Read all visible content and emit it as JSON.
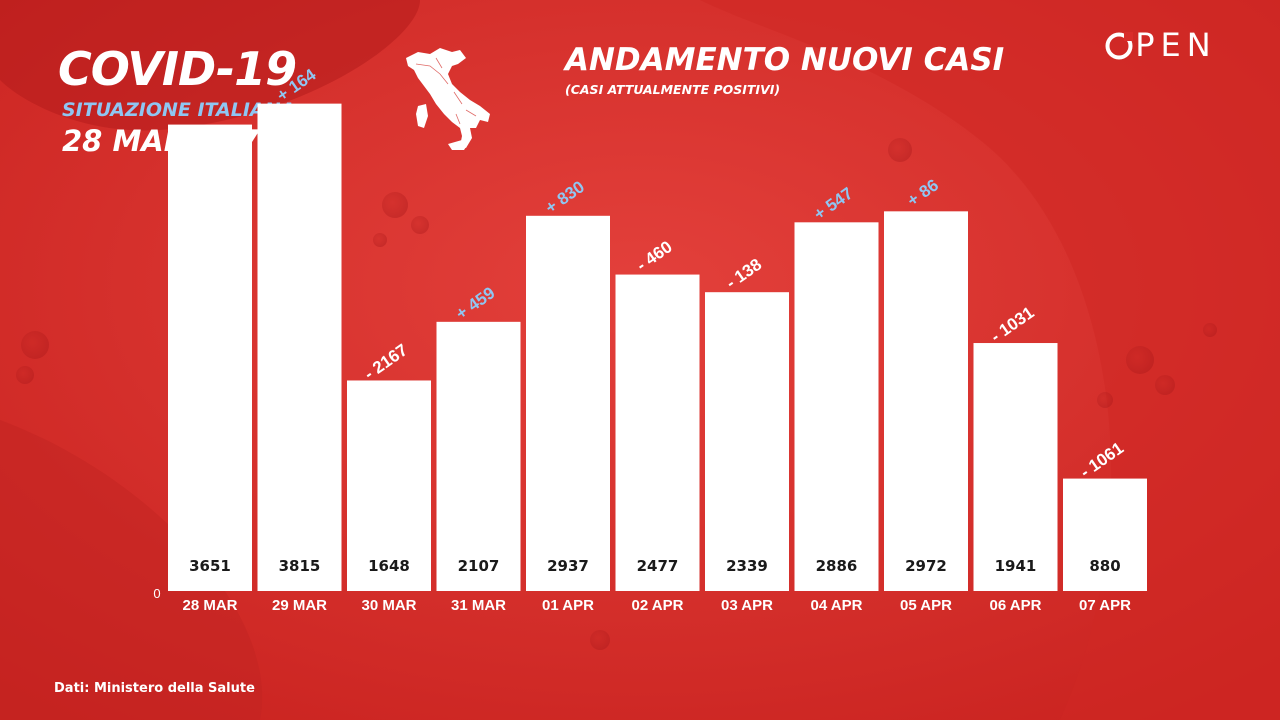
{
  "header": {
    "title": "COVID-19",
    "subtitle": "SITUAZIONE ITALIANA",
    "period": "28 MAR - 07 APR"
  },
  "brand": {
    "name": "OPEN"
  },
  "source": "Dati: Ministero della Salute",
  "colors": {
    "background": "#d92d2b",
    "bars": "#ffffff",
    "increase_label": "#8fc6f2",
    "decrease_label": "#ffffff",
    "value_label": "#1a1a1a"
  },
  "icons": {
    "map": "italy-map-icon"
  },
  "chart_data": {
    "type": "bar",
    "title": "ANDAMENTO NUOVI CASI",
    "subtitle": "(CASI ATTUALMENTE POSITIVI)",
    "categories": [
      "28 MAR",
      "29 MAR",
      "30 MAR",
      "31 MAR",
      "01 APR",
      "02 APR",
      "03 APR",
      "04 APR",
      "05 APR",
      "06 APR",
      "07 APR"
    ],
    "values": [
      3651,
      3815,
      1648,
      2107,
      2937,
      2477,
      2339,
      2886,
      2972,
      1941,
      880
    ],
    "value_labels": [
      "3651",
      "3815",
      "1648",
      "2107",
      "2937",
      "2477",
      "2339",
      "2886",
      "2972",
      "1941",
      "880"
    ],
    "change_labels": [
      "",
      "+ 164",
      "- 2167",
      "+ 459",
      "+ 830",
      "- 460",
      "- 138",
      "+ 547",
      "+ 86",
      "- 1031",
      "- 1061"
    ],
    "y_tick_labels": [
      "0"
    ],
    "ylim": [
      0,
      4000
    ],
    "grid": false,
    "xlabel": "",
    "ylabel": ""
  }
}
